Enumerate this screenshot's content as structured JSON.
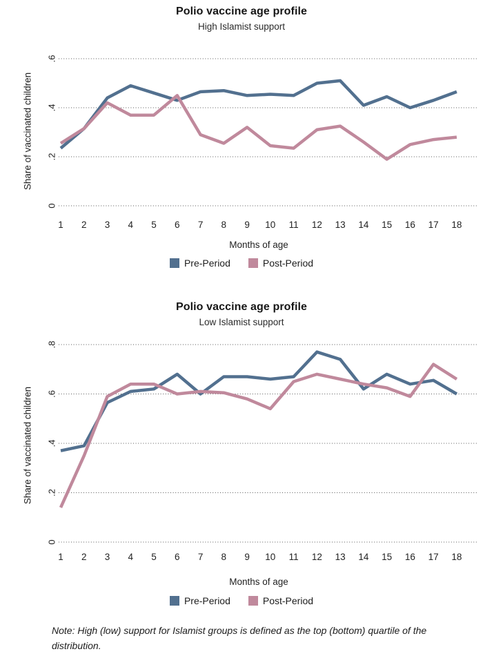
{
  "note": "Note: High (low) support for Islamist groups is defined as the top (bottom) quartile of the distribution.",
  "colors": {
    "pre_period": "#52708F",
    "post_period": "#C0899C",
    "gridline": "#555555",
    "text": "#1f1f1f"
  },
  "chart_data": [
    {
      "type": "line",
      "title": "Polio vaccine age profile",
      "subtitle": "High Islamist support",
      "xlabel": "Months of age",
      "ylabel": "Share of vaccinated children",
      "categories": [
        "1",
        "2",
        "3",
        "4",
        "5",
        "6",
        "7",
        "8",
        "9",
        "10",
        "11",
        "12",
        "13",
        "14",
        "15",
        "16",
        "17",
        "18"
      ],
      "ylim": [
        0,
        0.65
      ],
      "yticks": [
        0,
        0.2,
        0.4,
        0.6
      ],
      "ytick_labels": [
        "0",
        ".2",
        ".4",
        ".6"
      ],
      "grid": "horizontal-dotted",
      "legend_position": "bottom",
      "series": [
        {
          "name": "Pre-Period",
          "color": "#52708F",
          "values": [
            0.235,
            0.315,
            0.44,
            0.49,
            0.46,
            0.43,
            0.465,
            0.47,
            0.45,
            0.455,
            0.45,
            0.5,
            0.51,
            0.41,
            0.445,
            0.4,
            0.43,
            0.465
          ]
        },
        {
          "name": "Post-Period",
          "color": "#C0899C",
          "values": [
            0.255,
            0.315,
            0.42,
            0.37,
            0.37,
            0.45,
            0.29,
            0.255,
            0.32,
            0.245,
            0.235,
            0.31,
            0.325,
            0.26,
            0.19,
            0.25,
            0.27,
            0.28
          ]
        }
      ]
    },
    {
      "type": "line",
      "title": "Polio vaccine age profile",
      "subtitle": "Low Islamist support",
      "xlabel": "Months of age",
      "ylabel": "Share of vaccinated children",
      "categories": [
        "1",
        "2",
        "3",
        "4",
        "5",
        "6",
        "7",
        "8",
        "9",
        "10",
        "11",
        "12",
        "13",
        "14",
        "15",
        "16",
        "17",
        "18"
      ],
      "ylim": [
        0,
        0.85
      ],
      "yticks": [
        0,
        0.2,
        0.4,
        0.6,
        0.8
      ],
      "ytick_labels": [
        "0",
        ".2",
        ".4",
        ".6",
        ".8"
      ],
      "grid": "horizontal-dotted",
      "legend_position": "bottom",
      "series": [
        {
          "name": "Pre-Period",
          "color": "#52708F",
          "values": [
            0.37,
            0.39,
            0.565,
            0.61,
            0.62,
            0.68,
            0.6,
            0.67,
            0.67,
            0.66,
            0.67,
            0.77,
            0.74,
            0.62,
            0.68,
            0.64,
            0.655,
            0.6
          ]
        },
        {
          "name": "Post-Period",
          "color": "#C0899C",
          "values": [
            0.14,
            0.35,
            0.59,
            0.64,
            0.64,
            0.6,
            0.61,
            0.605,
            0.58,
            0.54,
            0.65,
            0.68,
            0.66,
            0.64,
            0.625,
            0.59,
            0.72,
            0.66
          ]
        }
      ]
    }
  ]
}
